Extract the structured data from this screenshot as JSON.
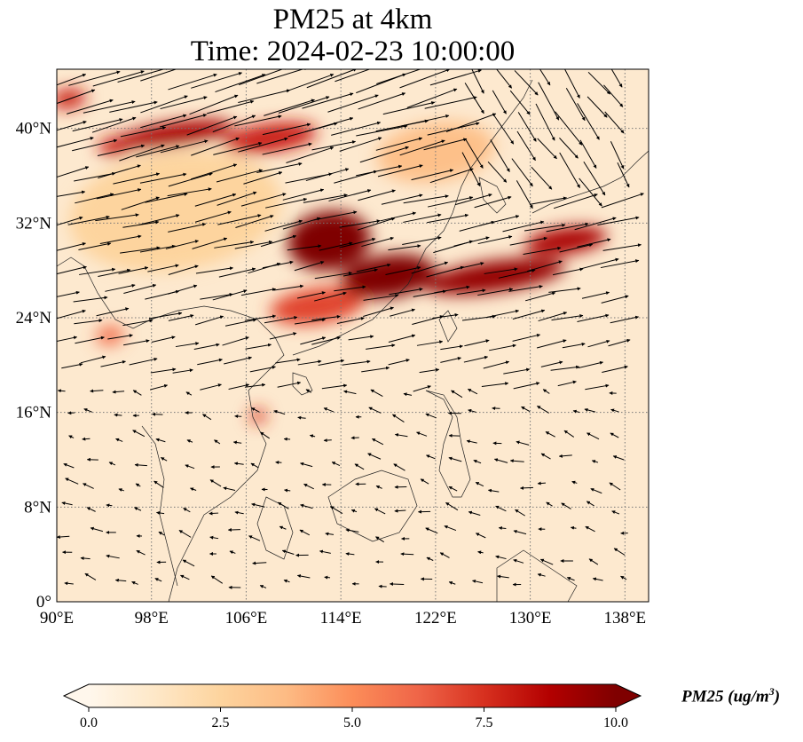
{
  "title": {
    "line1": "PM25 at 4km",
    "line2": "Time: 2024-02-23 10:00:00"
  },
  "map": {
    "lon_range": [
      90,
      140
    ],
    "lat_range": [
      0,
      45
    ],
    "lon_ticks": [
      90,
      98,
      106,
      114,
      122,
      130,
      138
    ],
    "lat_ticks": [
      0,
      8,
      16,
      24,
      32,
      40
    ],
    "lon_tick_labels": [
      "90°E",
      "98°E",
      "106°E",
      "114°E",
      "122°E",
      "130°E",
      "138°E"
    ],
    "lat_tick_labels": [
      "0°",
      "8°N",
      "16°N",
      "24°N",
      "32°N",
      "40°N"
    ],
    "gridlines": true,
    "coastlines": true,
    "wind_vectors": true
  },
  "plumes": [
    {
      "lon": 113,
      "lat": 30.5,
      "rlon": 3.5,
      "rlat": 2.5,
      "value": 10
    },
    {
      "lon": 118,
      "lat": 27.5,
      "rlon": 4,
      "rlat": 1.8,
      "value": 10
    },
    {
      "lon": 127,
      "lat": 27.5,
      "rlon": 6,
      "rlat": 1.3,
      "value": 9.5
    },
    {
      "lon": 133,
      "lat": 30.5,
      "rlon": 3.5,
      "rlat": 1.1,
      "value": 9
    },
    {
      "lon": 100,
      "lat": 39.5,
      "rlon": 5,
      "rlat": 1.0,
      "value": 9
    },
    {
      "lon": 108,
      "lat": 39.2,
      "rlon": 4,
      "rlat": 1.2,
      "value": 8
    },
    {
      "lon": 95,
      "lat": 38.5,
      "rlon": 1.5,
      "rlat": 0.8,
      "value": 8
    },
    {
      "lon": 91,
      "lat": 42.5,
      "rlon": 1.5,
      "rlat": 0.8,
      "value": 8
    },
    {
      "lon": 107,
      "lat": 15.7,
      "rlon": 0.7,
      "rlat": 0.6,
      "value": 7.5
    },
    {
      "lon": 94.5,
      "lat": 22.5,
      "rlon": 1.2,
      "rlat": 0.8,
      "value": 6
    },
    {
      "lon": 112,
      "lat": 25,
      "rlon": 4,
      "rlat": 1.5,
      "value": 7
    },
    {
      "lon": 122,
      "lat": 38,
      "rlon": 5,
      "rlat": 2.5,
      "value": 3.5
    },
    {
      "lon": 100,
      "lat": 33,
      "rlon": 9,
      "rlat": 5,
      "value": 2.5
    }
  ],
  "colorbar": {
    "min": 0,
    "max": 10,
    "ticks": [
      "0.0",
      "2.5",
      "5.0",
      "7.5",
      "10.0"
    ],
    "colormap": "OrRd",
    "stops": [
      "#fff7ec",
      "#fee8c8",
      "#fdd49e",
      "#fdbb84",
      "#fc8d59",
      "#ef6548",
      "#d7301f",
      "#b30000",
      "#7f0000"
    ],
    "extend": "both",
    "label_text": "PM25 (ug/m",
    "label_sup": "3",
    "label_close": ")"
  }
}
